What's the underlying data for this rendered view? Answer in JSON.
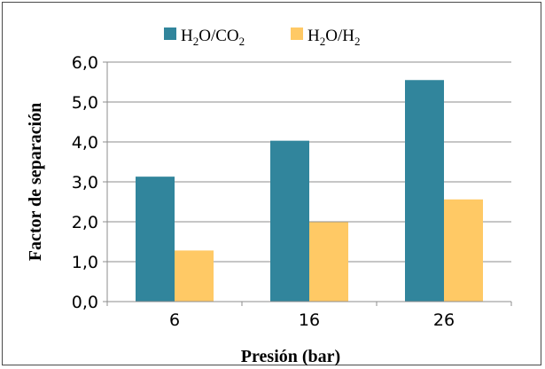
{
  "chart_data": {
    "type": "bar",
    "categories": [
      "6",
      "16",
      "26"
    ],
    "series": [
      {
        "name": "H2O/CO2",
        "color": "#31859C",
        "values": [
          3.13,
          4.03,
          5.55
        ]
      },
      {
        "name": "H2O/H2",
        "color": "#FFC965",
        "values": [
          1.28,
          1.99,
          2.56
        ]
      }
    ],
    "xlabel": "Presión (bar)",
    "ylabel": "Factor de separación",
    "ylim": [
      0,
      6
    ],
    "yticks": [
      "0,0",
      "1,0",
      "2,0",
      "3,0",
      "4,0",
      "5,0",
      "6,0"
    ],
    "grid": true,
    "legend_position": "top"
  }
}
